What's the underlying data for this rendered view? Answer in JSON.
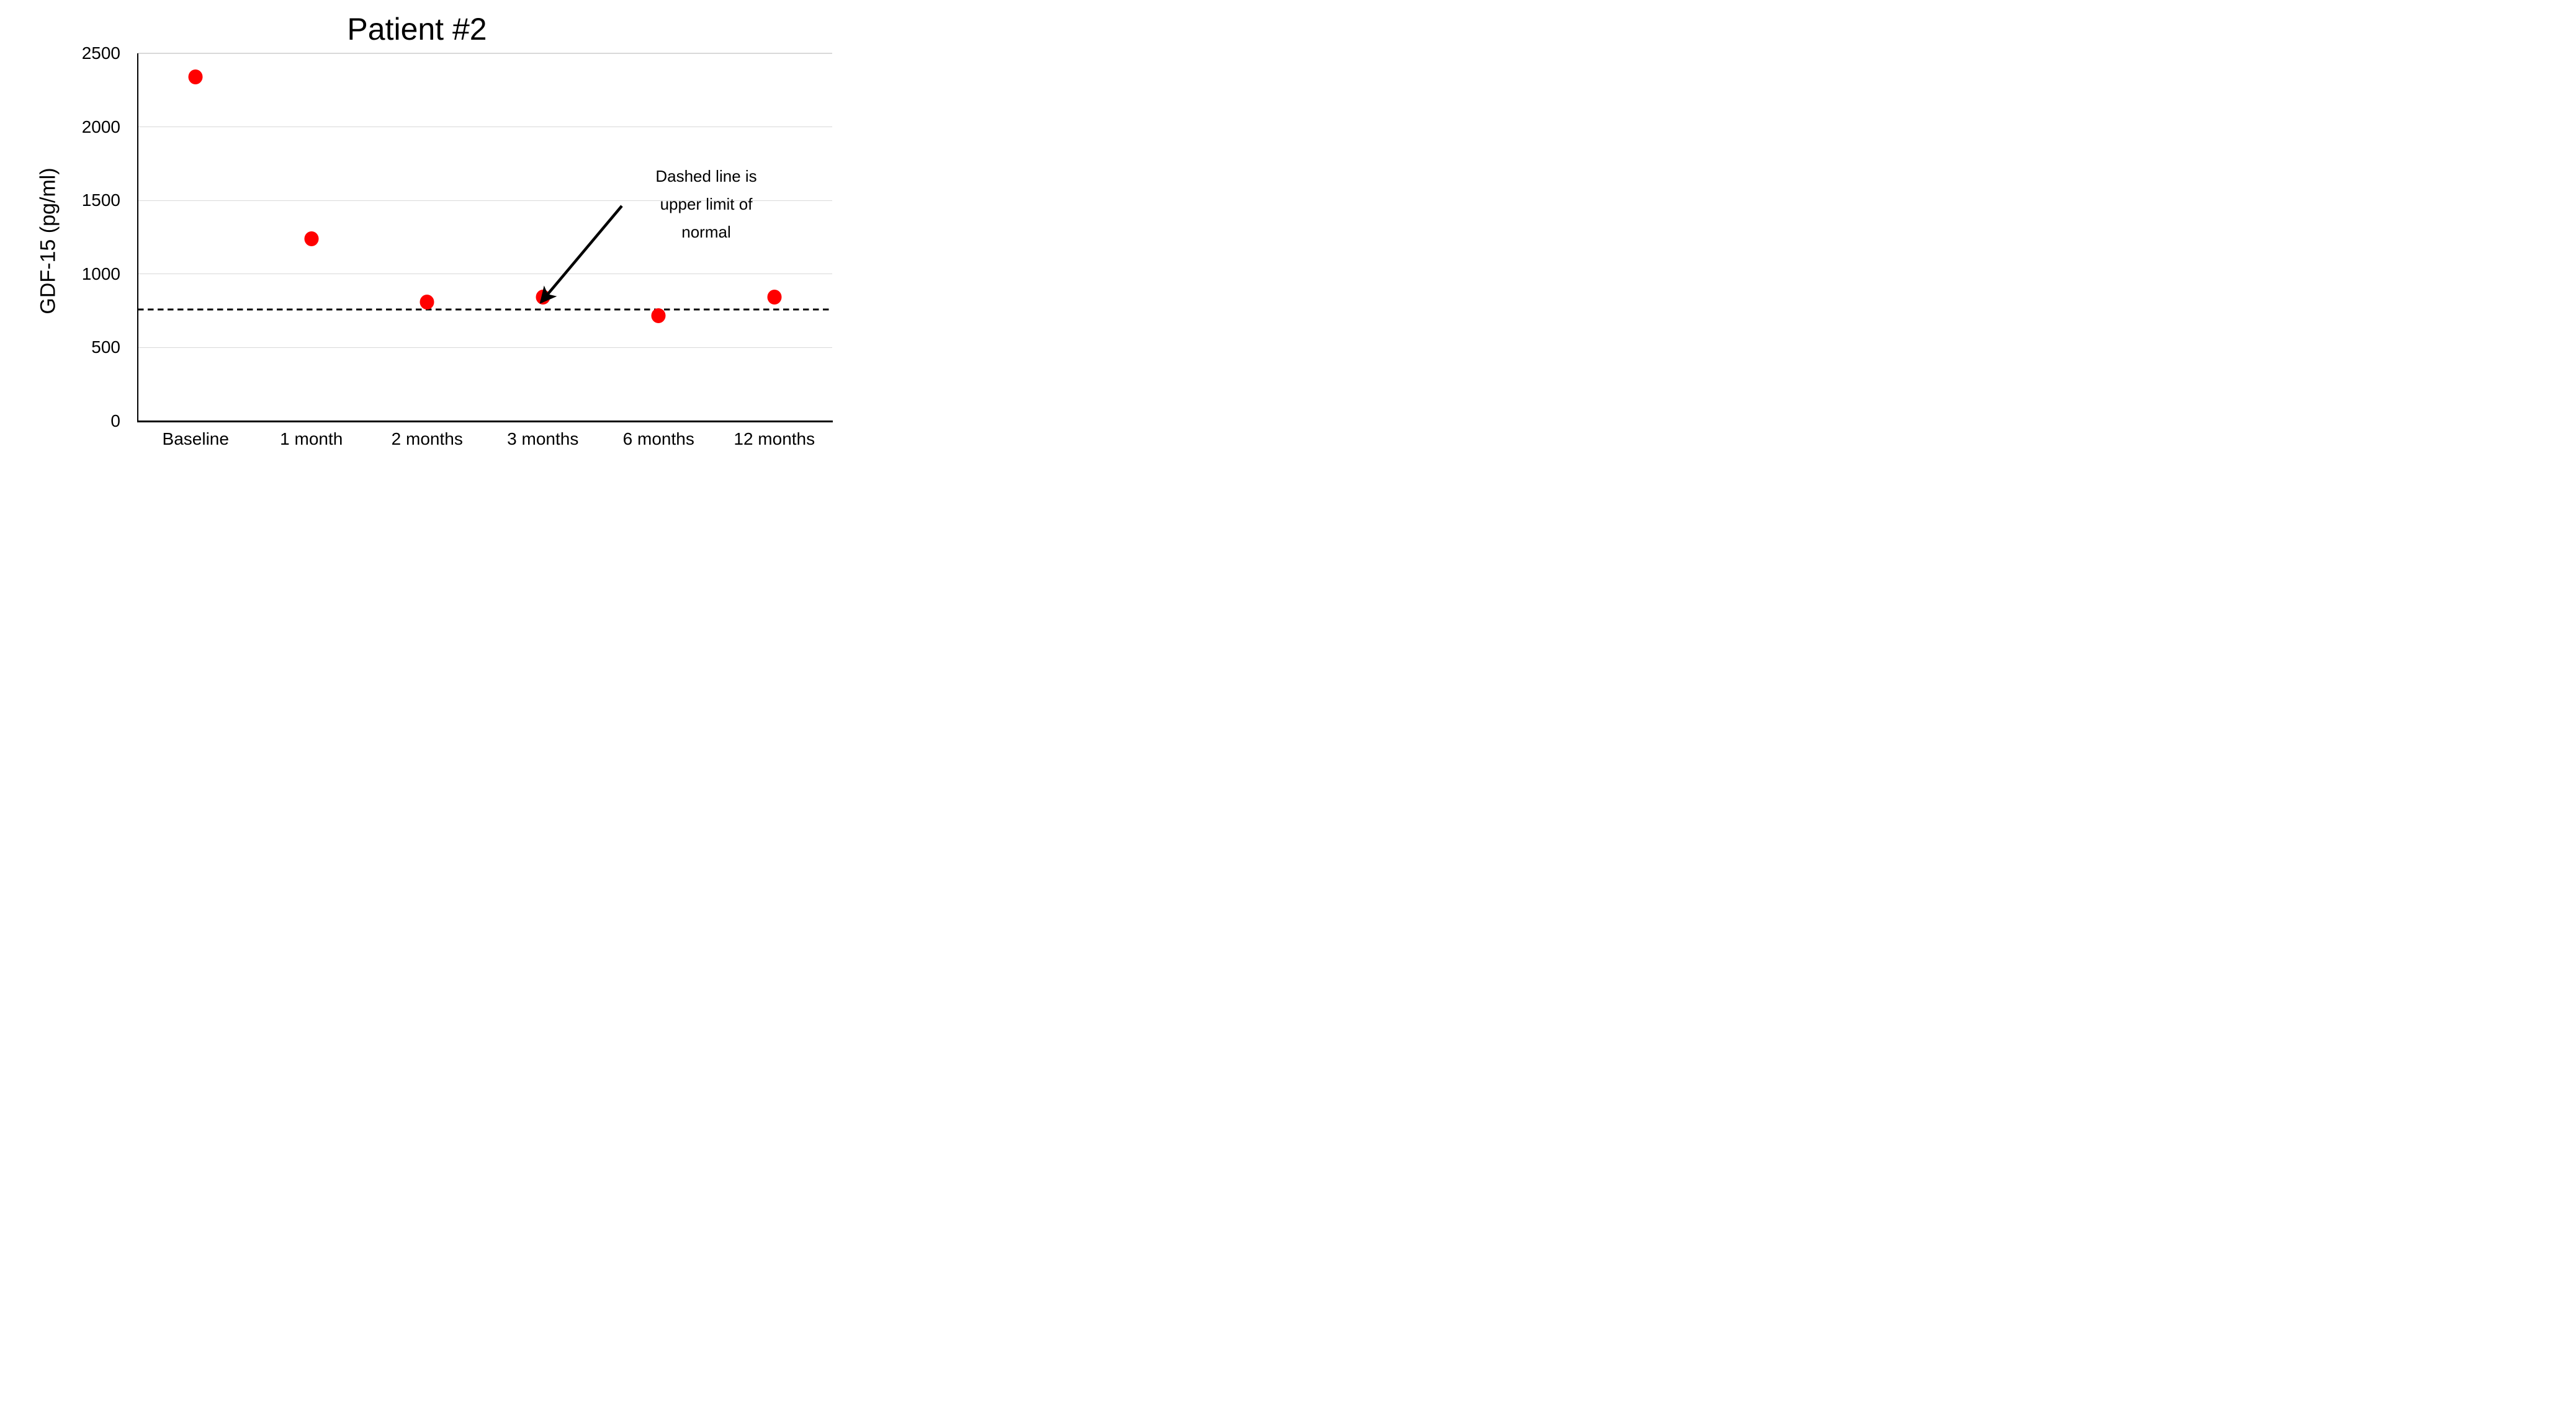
{
  "title": "Patient #2",
  "chart_data": {
    "type": "scatter",
    "title": "Patient #2",
    "xlabel": "",
    "ylabel": "GDF-15 (pg/ml)",
    "categories": [
      "Baseline",
      "1 month",
      "2 months",
      "3 months",
      "6 months",
      "12 months"
    ],
    "values": [
      2340,
      1240,
      810,
      845,
      715,
      845
    ],
    "ylim": [
      0,
      2500
    ],
    "yticks": [
      0,
      500,
      1000,
      1500,
      2000,
      2500
    ],
    "grid": "horizontal gridlines on",
    "legend": "none",
    "gridline_color": "#d9d9d9",
    "axis_color": "#000000",
    "point_color": "#ff0000",
    "reference_line": {
      "value": 760,
      "style": "dashed",
      "color": "#000000",
      "meaning": "upper limit of normal"
    }
  },
  "annotation": {
    "line1": "Dashed line is",
    "line2": "upper limit of",
    "line3": "normal",
    "full_text": "Dashed line is upper limit of normal",
    "arrow": "points from text to dashed line near 3 months"
  }
}
